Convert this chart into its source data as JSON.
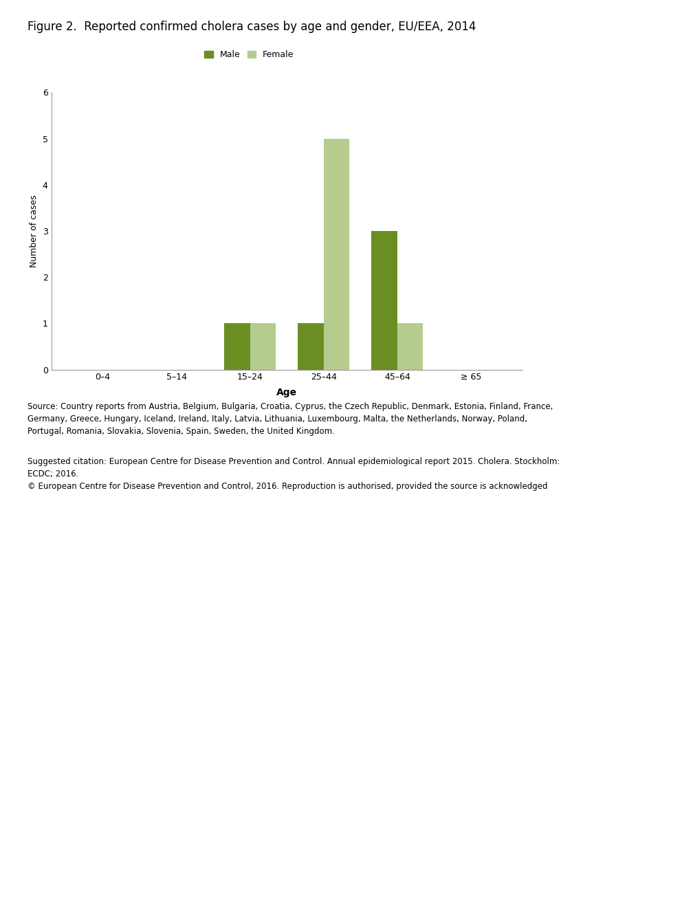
{
  "title": "Figure 2.  Reported confirmed cholera cases by age and gender, EU/EEA, 2014",
  "age_groups": [
    "0–4",
    "5–14",
    "15–24",
    "25–44",
    "45–64",
    "≥ 65"
  ],
  "male_values": [
    0,
    0,
    1,
    1,
    3,
    0
  ],
  "female_values": [
    0,
    0,
    1,
    5,
    1,
    0
  ],
  "male_color": "#6b8e23",
  "female_color": "#b5cc8e",
  "ylabel": "Number of cases",
  "xlabel": "Age",
  "ylim": [
    0,
    6
  ],
  "yticks": [
    0,
    1,
    2,
    3,
    4,
    5,
    6
  ],
  "bar_width": 0.35,
  "legend_labels": [
    "Male",
    "Female"
  ],
  "source_text": "Source: Country reports from Austria, Belgium, Bulgaria, Croatia, Cyprus, the Czech Republic, Denmark, Estonia, Finland, France,\nGermany, Greece, Hungary, Iceland, Ireland, Italy, Latvia, Lithuania, Luxembourg, Malta, the Netherlands, Norway, Poland,\nPortugal, Romania, Slovakia, Slovenia, Spain, Sweden, the United Kingdom.",
  "citation_text": "Suggested citation: European Centre for Disease Prevention and Control. Annual epidemiological report 2015. Cholera. Stockholm:\nECDC; 2016.\n© European Centre for Disease Prevention and Control, 2016. Reproduction is authorised, provided the source is acknowledged",
  "background_color": "#ffffff",
  "title_fontsize": 12,
  "axis_fontsize": 9,
  "tick_fontsize": 9,
  "legend_fontsize": 9,
  "annotation_fontsize": 8.5
}
